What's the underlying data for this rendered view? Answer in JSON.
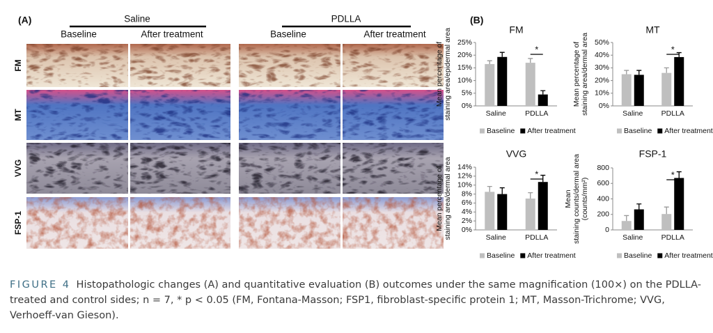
{
  "panel_a": {
    "label": "(A)",
    "groups": [
      "Saline",
      "PDLLA"
    ],
    "columns": [
      "Baseline",
      "After treatment",
      "Baseline",
      "After treatment"
    ],
    "rows": [
      "FM",
      "MT",
      "VVG",
      "FSP-1"
    ]
  },
  "panel_b": {
    "label": "(B)"
  },
  "chart_data": [
    {
      "type": "bar",
      "title": "FM",
      "ylabel": [
        "Mean percentage of",
        "staining area/epidermal area"
      ],
      "categories": [
        "Saline",
        "PDLLA"
      ],
      "series": [
        {
          "name": "Baseline",
          "color": "#bfbfbf",
          "values": [
            16.5,
            17
          ],
          "errors": [
            1.3,
            1.7
          ]
        },
        {
          "name": "After treatment",
          "color": "#000000",
          "values": [
            19.3,
            4.5
          ],
          "errors": [
            1.8,
            1.5
          ]
        }
      ],
      "ylim": [
        0,
        25
      ],
      "yticks": [
        {
          "value": 0,
          "label": "0%"
        },
        {
          "value": 5,
          "label": "5%"
        },
        {
          "value": 10,
          "label": "10%"
        },
        {
          "value": 15,
          "label": "15%"
        },
        {
          "value": 20,
          "label": "20%"
        },
        {
          "value": 25,
          "label": "25%"
        }
      ],
      "annotation": "*",
      "legend": "bottom"
    },
    {
      "type": "bar",
      "title": "MT",
      "ylabel": [
        "Mean percentage of",
        "staining area/dermal area"
      ],
      "categories": [
        "Saline",
        "PDLLA"
      ],
      "series": [
        {
          "name": "Baseline",
          "color": "#bfbfbf",
          "values": [
            25,
            26
          ],
          "errors": [
            3,
            4
          ]
        },
        {
          "name": "After treatment",
          "color": "#000000",
          "values": [
            24.5,
            38.5
          ],
          "errors": [
            3.5,
            3.5
          ]
        }
      ],
      "ylim": [
        0,
        50
      ],
      "yticks": [
        {
          "value": 0,
          "label": "0%"
        },
        {
          "value": 10,
          "label": "10%"
        },
        {
          "value": 20,
          "label": "20%"
        },
        {
          "value": 30,
          "label": "30%"
        },
        {
          "value": 40,
          "label": "40%"
        },
        {
          "value": 50,
          "label": "50%"
        }
      ],
      "annotation": "*",
      "legend": "bottom"
    },
    {
      "type": "bar",
      "title": "VVG",
      "ylabel": [
        "Mean percentage of",
        "staining area/dermal area"
      ],
      "categories": [
        "Saline",
        "PDLLA"
      ],
      "series": [
        {
          "name": "Baseline",
          "color": "#bfbfbf",
          "values": [
            8.5,
            7
          ],
          "errors": [
            1.2,
            1.3
          ]
        },
        {
          "name": "After treatment",
          "color": "#000000",
          "values": [
            8,
            10.7
          ],
          "errors": [
            1.4,
            1.5
          ]
        }
      ],
      "ylim": [
        0,
        14
      ],
      "yticks": [
        {
          "value": 0,
          "label": "0%"
        },
        {
          "value": 2,
          "label": "2%"
        },
        {
          "value": 4,
          "label": "4%"
        },
        {
          "value": 6,
          "label": "6%"
        },
        {
          "value": 8,
          "label": "8%"
        },
        {
          "value": 10,
          "label": "10%"
        },
        {
          "value": 12,
          "label": "12%"
        },
        {
          "value": 14,
          "label": "14%"
        }
      ],
      "annotation": "*",
      "legend": "bottom"
    },
    {
      "type": "bar",
      "title": "FSP-1",
      "ylabel": [
        "Mean",
        "staining counts/dermal area",
        "(counts/mm²)"
      ],
      "categories": [
        "Saline",
        "PDLLA"
      ],
      "series": [
        {
          "name": "Baseline",
          "color": "#bfbfbf",
          "values": [
            115,
            205
          ],
          "errors": [
            70,
            90
          ]
        },
        {
          "name": "After treatment",
          "color": "#000000",
          "values": [
            265,
            670
          ],
          "errors": [
            70,
            80
          ]
        }
      ],
      "ylim": [
        0,
        800
      ],
      "yticks": [
        0,
        200,
        400,
        600,
        800
      ],
      "annotation": "*",
      "legend": "bottom"
    }
  ],
  "caption": {
    "label": "FIGURE 4",
    "text": "Histopathologic changes (A) and quantitative evaluation (B) outcomes under the same magnification (100×) on the PDLLA-treated and control sides; n = 7, * p < 0.05 (FM, Fontana-Masson; FSP1, fibroblast-specific protein 1; MT, Masson-Trichrome; VVG, Verhoeff-van Gieson)."
  }
}
